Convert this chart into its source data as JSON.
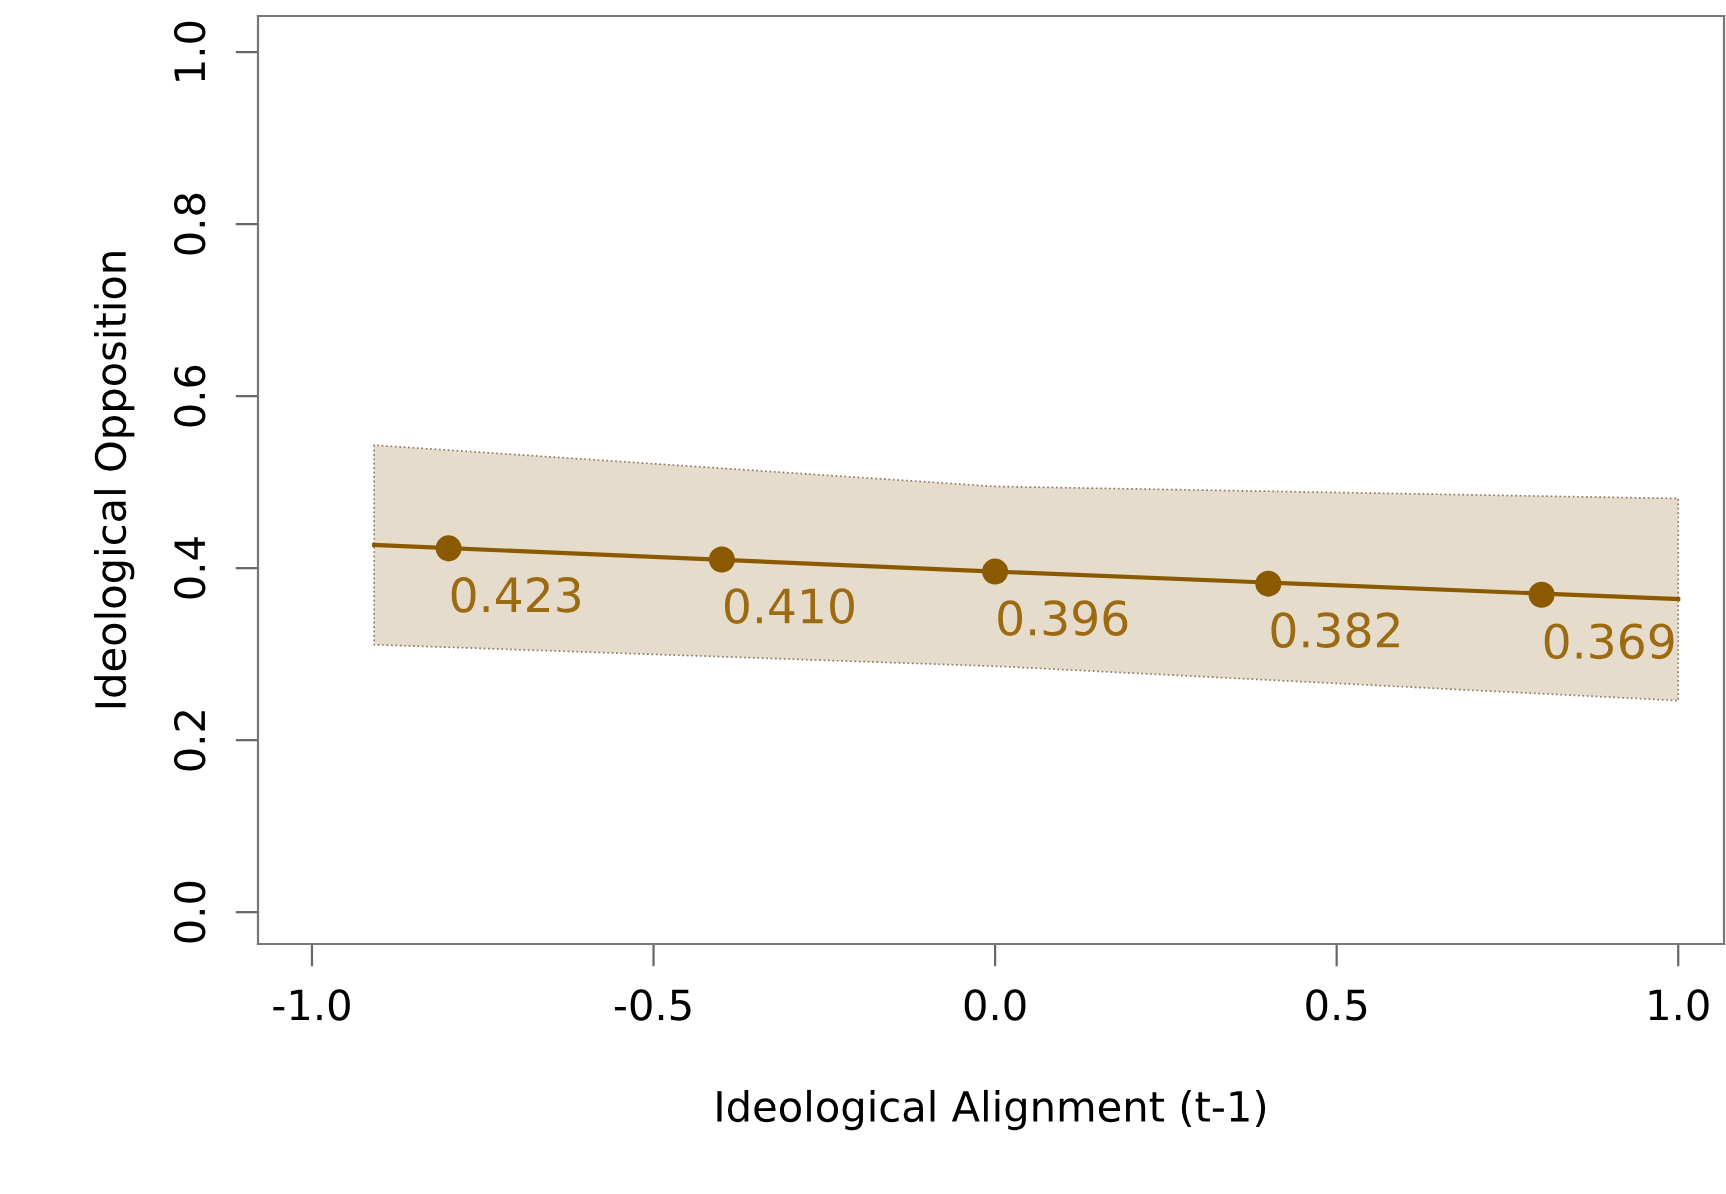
{
  "chart_data": {
    "type": "line",
    "xlabel": "Ideological Alignment (t-1)",
    "ylabel": "Ideological Opposition",
    "xlim": [
      -1.079,
      1.067
    ],
    "ylim": [
      -0.037,
      1.042
    ],
    "xticks": [
      {
        "value": -1,
        "label": "-1.0"
      },
      {
        "value": -0.5,
        "label": "-0.5"
      },
      {
        "value": 0,
        "label": "0.0"
      },
      {
        "value": 0.5,
        "label": "0.5"
      },
      {
        "value": 1,
        "label": "1.0"
      }
    ],
    "yticks": [
      {
        "value": 0,
        "label": "0.0"
      },
      {
        "value": 0.2,
        "label": "0.2"
      },
      {
        "value": 0.4,
        "label": "0.4"
      },
      {
        "value": 0.6,
        "label": "0.6"
      },
      {
        "value": 0.8,
        "label": "0.8"
      },
      {
        "value": 1,
        "label": "1.0"
      }
    ],
    "grid": false,
    "legend": false,
    "series": [
      {
        "color": "#8b5a00",
        "x": [
          -0.909,
          0,
          1.0
        ],
        "values": [
          0.427,
          0.396,
          0.364
        ],
        "lower": [
          0.311,
          0.286,
          0.246
        ],
        "upper": [
          0.543,
          0.495,
          0.481
        ],
        "marker": "none"
      },
      {
        "type": "scatter",
        "color": "#8b5a00",
        "x": [
          -0.8,
          -0.4,
          0,
          0.4,
          0.8
        ],
        "values": [
          0.423,
          0.41,
          0.396,
          0.382,
          0.369
        ],
        "marker": "circle",
        "value_labels": [
          "0.423",
          "0.410",
          "0.396",
          "0.382",
          "0.369"
        ]
      }
    ]
  }
}
